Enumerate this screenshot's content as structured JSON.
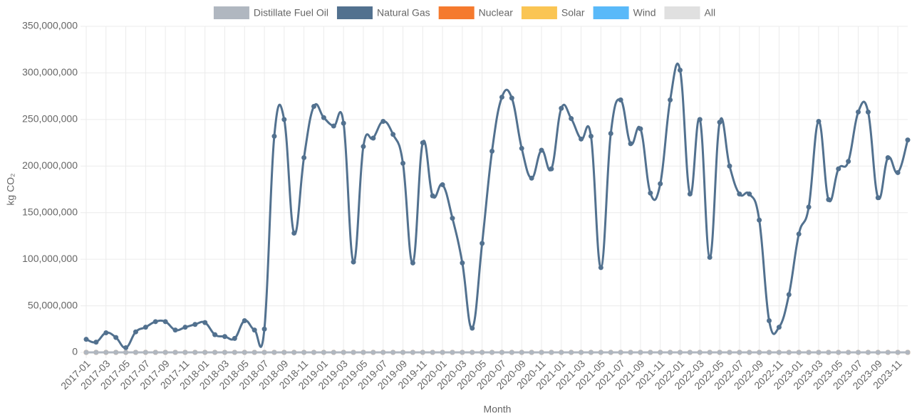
{
  "chart_data": {
    "type": "line",
    "y_label": "kg CO₂",
    "x_label": "Month",
    "categories": [
      "2017-01",
      null,
      "2017-03",
      null,
      "2017-05",
      null,
      "2017-07",
      null,
      "2017-09",
      null,
      "2017-11",
      null,
      "2018-01",
      null,
      "2018-03",
      null,
      "2018-05",
      null,
      "2018-07",
      null,
      "2018-09",
      null,
      "2018-11",
      null,
      "2019-01",
      null,
      "2019-03",
      null,
      "2019-05",
      null,
      "2019-07",
      null,
      "2019-09",
      null,
      "2019-11",
      null,
      "2020-01",
      null,
      "2020-03",
      null,
      "2020-05",
      null,
      "2020-07",
      null,
      "2020-09",
      null,
      "2020-11",
      null,
      "2021-01",
      null,
      "2021-03",
      null,
      "2021-05",
      null,
      "2021-07",
      null,
      "2021-09",
      null,
      "2021-11",
      null,
      "2022-01",
      null,
      "2022-03",
      null,
      "2022-05",
      null,
      "2022-07",
      null,
      "2022-09",
      null,
      "2022-11",
      null,
      "2023-01",
      null,
      "2023-03",
      null,
      "2023-05",
      null,
      "2023-07",
      null,
      "2023-09",
      null,
      "2023-11",
      null
    ],
    "series": [
      {
        "name": "Distillate Fuel Oil",
        "color": "#b0b7c0",
        "values": [
          0,
          0,
          0,
          0,
          0,
          0,
          0,
          0,
          0,
          0,
          0,
          0,
          0,
          0,
          0,
          0,
          0,
          0,
          0,
          0,
          0,
          0,
          0,
          0,
          0,
          0,
          0,
          0,
          0,
          0,
          0,
          0,
          0,
          0,
          0,
          0,
          0,
          0,
          0,
          0,
          0,
          0,
          0,
          0,
          0,
          0,
          0,
          0,
          0,
          0,
          0,
          0,
          0,
          0,
          0,
          0,
          0,
          0,
          0,
          0,
          0,
          0,
          0,
          0,
          0,
          0,
          0,
          0,
          0,
          0,
          0,
          0,
          0,
          0,
          0,
          0,
          0,
          0,
          0,
          0,
          0,
          0,
          0,
          0
        ]
      },
      {
        "name": "Natural Gas",
        "color": "#52718f",
        "values": [
          14000000,
          11000000,
          21000000,
          16000000,
          5000000,
          22000000,
          27000000,
          33000000,
          33000000,
          24000000,
          27000000,
          30000000,
          32000000,
          19000000,
          17000000,
          15000000,
          34000000,
          24000000,
          25000000,
          232000000,
          250000000,
          128000000,
          209000000,
          264000000,
          252000000,
          243000000,
          246000000,
          97000000,
          221000000,
          230000000,
          248000000,
          234000000,
          203000000,
          96000000,
          225000000,
          168000000,
          180000000,
          144000000,
          96000000,
          26000000,
          117000000,
          216000000,
          274000000,
          273000000,
          219000000,
          187000000,
          217000000,
          197000000,
          262000000,
          251000000,
          229000000,
          232000000,
          91000000,
          235000000,
          271000000,
          224000000,
          240000000,
          171000000,
          181000000,
          271000000,
          303000000,
          170000000,
          250000000,
          102000000,
          247000000,
          200000000,
          170000000,
          170000000,
          142000000,
          34000000,
          27000000,
          62000000,
          127000000,
          156000000,
          248000000,
          164000000,
          197000000,
          205000000,
          258000000,
          258000000,
          166000000,
          209000000,
          193000000,
          228000000
        ]
      },
      {
        "name": "Nuclear",
        "color": "#f57a2e",
        "values": [
          0,
          0,
          0,
          0,
          0,
          0,
          0,
          0,
          0,
          0,
          0,
          0,
          0,
          0,
          0,
          0,
          0,
          0,
          0,
          0,
          0,
          0,
          0,
          0,
          0,
          0,
          0,
          0,
          0,
          0,
          0,
          0,
          0,
          0,
          0,
          0,
          0,
          0,
          0,
          0,
          0,
          0,
          0,
          0,
          0,
          0,
          0,
          0,
          0,
          0,
          0,
          0,
          0,
          0,
          0,
          0,
          0,
          0,
          0,
          0,
          0,
          0,
          0,
          0,
          0,
          0,
          0,
          0,
          0,
          0,
          0,
          0,
          0,
          0,
          0,
          0,
          0,
          0,
          0,
          0,
          0,
          0,
          0,
          0
        ]
      },
      {
        "name": "Solar",
        "color": "#fac553",
        "values": [
          0,
          0,
          0,
          0,
          0,
          0,
          0,
          0,
          0,
          0,
          0,
          0,
          0,
          0,
          0,
          0,
          0,
          0,
          0,
          0,
          0,
          0,
          0,
          0,
          0,
          0,
          0,
          0,
          0,
          0,
          0,
          0,
          0,
          0,
          0,
          0,
          0,
          0,
          0,
          0,
          0,
          0,
          0,
          0,
          0,
          0,
          0,
          0,
          0,
          0,
          0,
          0,
          0,
          0,
          0,
          0,
          0,
          0,
          0,
          0,
          0,
          0,
          0,
          0,
          0,
          0,
          0,
          0,
          0,
          0,
          0,
          0,
          0,
          0,
          0,
          0,
          0,
          0,
          0,
          0,
          0,
          0,
          0,
          0
        ]
      },
      {
        "name": "Wind",
        "color": "#59b9f9",
        "values": [
          0,
          0,
          0,
          0,
          0,
          0,
          0,
          0,
          0,
          0,
          0,
          0,
          0,
          0,
          0,
          0,
          0,
          0,
          0,
          0,
          0,
          0,
          0,
          0,
          0,
          0,
          0,
          0,
          0,
          0,
          0,
          0,
          0,
          0,
          0,
          0,
          0,
          0,
          0,
          0,
          0,
          0,
          0,
          0,
          0,
          0,
          0,
          0,
          0,
          0,
          0,
          0,
          0,
          0,
          0,
          0,
          0,
          0,
          0,
          0,
          0,
          0,
          0,
          0,
          0,
          0,
          0,
          0,
          0,
          0,
          0,
          0,
          0,
          0,
          0,
          0,
          0,
          0,
          0,
          0,
          0,
          0,
          0,
          0
        ]
      },
      {
        "name": "All",
        "color": "#e0e0e0",
        "values": [
          0,
          0,
          0,
          0,
          0,
          0,
          0,
          0,
          0,
          0,
          0,
          0,
          0,
          0,
          0,
          0,
          0,
          0,
          0,
          0,
          0,
          0,
          0,
          0,
          0,
          0,
          0,
          0,
          0,
          0,
          0,
          0,
          0,
          0,
          0,
          0,
          0,
          0,
          0,
          0,
          0,
          0,
          0,
          0,
          0,
          0,
          0,
          0,
          0,
          0,
          0,
          0,
          0,
          0,
          0,
          0,
          0,
          0,
          0,
          0,
          0,
          0,
          0,
          0,
          0,
          0,
          0,
          0,
          0,
          0,
          0,
          0,
          0,
          0,
          0,
          0,
          0,
          0,
          0,
          0,
          0,
          0,
          0,
          0
        ]
      }
    ],
    "ylim": [
      0,
      350000000
    ],
    "yticks": [
      {
        "value": 0,
        "label": "0"
      },
      {
        "value": 50000000,
        "label": "50,000,000"
      },
      {
        "value": 100000000,
        "label": "100,000,000"
      },
      {
        "value": 150000000,
        "label": "150,000,000"
      },
      {
        "value": 200000000,
        "label": "200,000,000"
      },
      {
        "value": 250000000,
        "label": "250,000,000"
      },
      {
        "value": 300000000,
        "label": "300,000,000"
      },
      {
        "value": 350000000,
        "label": "350,000,000"
      }
    ],
    "grid": true,
    "legend": "top"
  }
}
